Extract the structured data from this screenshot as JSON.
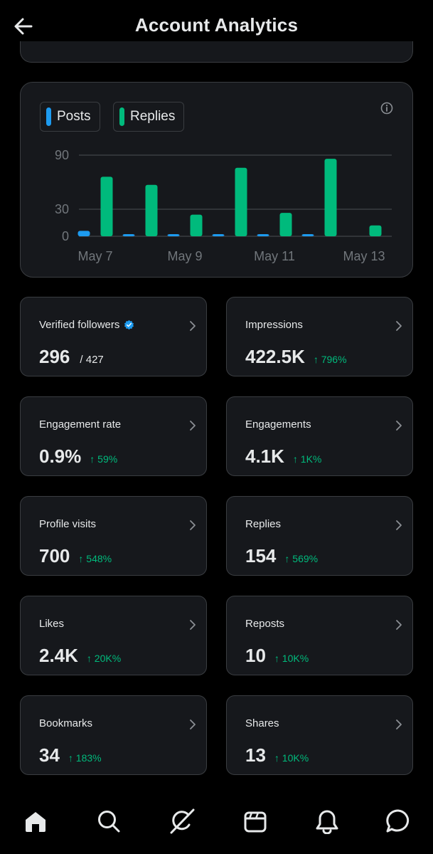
{
  "header": {
    "title": "Account Analytics"
  },
  "legend": {
    "posts_label": "Posts",
    "replies_label": "Replies"
  },
  "colors": {
    "posts": "#1d9bf0",
    "replies": "#00ba7c",
    "accent_green": "#00ba7c"
  },
  "chart_data": {
    "type": "bar",
    "x": [
      "May 7",
      "May 8",
      "May 9",
      "May 10",
      "May 11",
      "May 12",
      "May 13"
    ],
    "x_tick_labels": [
      "May 7",
      "May 9",
      "May 11",
      "May 13"
    ],
    "y_tick_labels": [
      "90",
      "30",
      "0"
    ],
    "y_ticks": [
      90,
      30,
      0
    ],
    "ylim": [
      0,
      90
    ],
    "series": [
      {
        "name": "Posts",
        "values": [
          6,
          2,
          2,
          2,
          2,
          1,
          0
        ]
      },
      {
        "name": "Replies",
        "values": [
          66,
          57,
          24,
          76,
          26,
          86,
          12
        ]
      }
    ],
    "title": "",
    "xlabel": "",
    "ylabel": ""
  },
  "stats": [
    {
      "label": "Verified followers",
      "value": "296",
      "sub": "/ 427",
      "change": "",
      "verified": true
    },
    {
      "label": "Impressions",
      "value": "422.5K",
      "sub": "",
      "change": "↑ 796%"
    },
    {
      "label": "Engagement rate",
      "value": "0.9%",
      "sub": "",
      "change": "↑ 59%"
    },
    {
      "label": "Engagements",
      "value": "4.1K",
      "sub": "",
      "change": "↑ 1K%"
    },
    {
      "label": "Profile visits",
      "value": "700",
      "sub": "",
      "change": "↑ 548%"
    },
    {
      "label": "Replies",
      "value": "154",
      "sub": "",
      "change": "↑ 569%"
    },
    {
      "label": "Likes",
      "value": "2.4K",
      "sub": "",
      "change": "↑ 20K%"
    },
    {
      "label": "Reposts",
      "value": "10",
      "sub": "",
      "change": "↑ 10K%"
    },
    {
      "label": "Bookmarks",
      "value": "34",
      "sub": "",
      "change": "↑ 183%"
    },
    {
      "label": "Shares",
      "value": "13",
      "sub": "",
      "change": "↑ 10K%"
    }
  ],
  "nav": [
    "home-icon",
    "search-icon",
    "grok-icon",
    "communities-icon",
    "notifications-icon",
    "messages-icon"
  ]
}
